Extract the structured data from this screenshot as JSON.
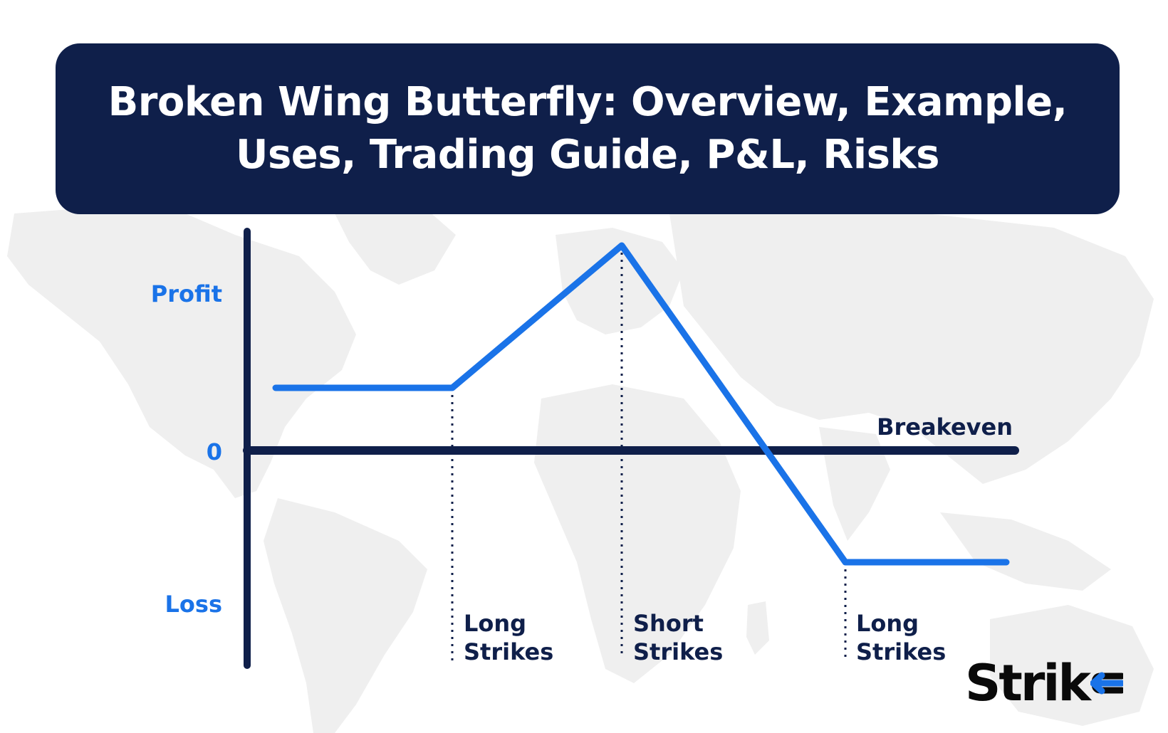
{
  "title": {
    "line1": "Broken Wing Butterfly: Overview, Example,",
    "line2": "Uses, Trading Guide, P&L, Risks"
  },
  "y_axis": {
    "profit_label": "Profit",
    "zero_label": "0",
    "loss_label": "Loss"
  },
  "breakeven_label": "Breakeven",
  "strikes": [
    {
      "line1": "Long",
      "line2": "Strikes"
    },
    {
      "line1": "Short",
      "line2": "Strikes"
    },
    {
      "line1": "Long",
      "line2": "Strikes"
    }
  ],
  "logo": {
    "text": "Strik",
    "icon": "e-arrow-icon"
  },
  "colors": {
    "navy": "#0f1f4a",
    "blue": "#1a73e8",
    "map": "#efefef"
  }
}
